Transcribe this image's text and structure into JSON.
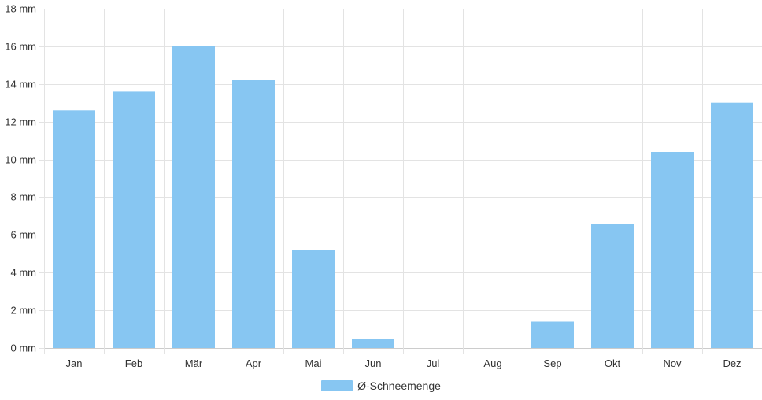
{
  "chart_data": {
    "type": "bar",
    "categories": [
      "Jan",
      "Feb",
      "Mär",
      "Apr",
      "Mai",
      "Jun",
      "Jul",
      "Aug",
      "Sep",
      "Okt",
      "Nov",
      "Dez"
    ],
    "series": [
      {
        "name": "Ø-Schneemenge",
        "values": [
          12.6,
          13.6,
          16.0,
          14.2,
          5.2,
          0.5,
          0,
          0,
          1.4,
          6.6,
          10.4,
          13.0
        ]
      }
    ],
    "y_unit": "mm",
    "ylim": [
      0,
      18
    ],
    "yticks": [
      "0 mm",
      "2 mm",
      "4 mm",
      "6 mm",
      "8 mm",
      "10 mm",
      "12 mm",
      "14 mm",
      "16 mm",
      "18 mm"
    ],
    "grid": true,
    "legend_position": "bottom",
    "colors": {
      "bar": "#87c6f2",
      "grid": "#e3e3e3",
      "axis": "#cccccc",
      "text": "#333333"
    }
  }
}
